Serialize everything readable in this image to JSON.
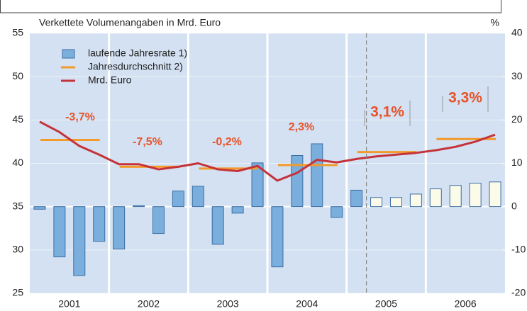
{
  "chart_data": {
    "type": "bar_line",
    "subtitle": "Verkettete Volumenangaben in Mrd. Euro",
    "y2_unit": "%",
    "categories": [
      "2001",
      "2002",
      "2003",
      "2004",
      "2005",
      "2006"
    ],
    "ylim": [
      25,
      55
    ],
    "yticks": [
      25,
      30,
      35,
      40,
      45,
      50,
      55
    ],
    "y2lim": [
      -20,
      40
    ],
    "y2ticks": [
      -20,
      -10,
      0,
      10,
      20,
      30,
      40
    ],
    "grid": true,
    "background": "#d3e1f2",
    "forecast_start": 17,
    "series": [
      {
        "name": "laufende Jahresrate 1)",
        "kind": "bar",
        "axis": "y2",
        "color": "#7aaedc",
        "edge": "#3d6ea6",
        "forecast_color": "#fcfbe9",
        "values": [
          [
            -0.6,
            -11.6,
            -15.9,
            -8.0
          ],
          [
            -9.8,
            0.2,
            -6.2,
            3.6
          ],
          [
            4.7,
            -8.7,
            -1.5,
            10.1
          ],
          [
            -13.9,
            11.8,
            14.5,
            -2.5
          ],
          [
            3.8,
            2.1,
            2.1,
            2.9
          ],
          [
            4.1,
            4.9,
            5.4,
            5.7
          ]
        ]
      },
      {
        "name": "Jahresdurchschnitt 2)",
        "kind": "step",
        "color": "#f39a2b",
        "values": [
          42.7,
          39.6,
          39.4,
          39.8,
          41.3,
          42.8
        ]
      },
      {
        "name": "Mrd. Euro",
        "kind": "line",
        "color": "#c5333a",
        "values": [
          [
            44.8,
            43.6,
            42.0,
            41.0
          ],
          [
            39.9,
            39.9,
            39.3,
            39.6
          ],
          [
            40.0,
            39.3,
            39.1,
            39.7
          ],
          [
            38.0,
            38.9,
            40.4,
            40.1
          ],
          [
            40.5,
            40.8,
            41.0,
            41.2
          ],
          [
            41.5,
            41.9,
            42.5,
            43.3
          ]
        ]
      }
    ],
    "annotations": [
      "-3,7%",
      "-7,5%",
      "-0,2%",
      "2,3%",
      "3,1%",
      "3,3%"
    ]
  }
}
